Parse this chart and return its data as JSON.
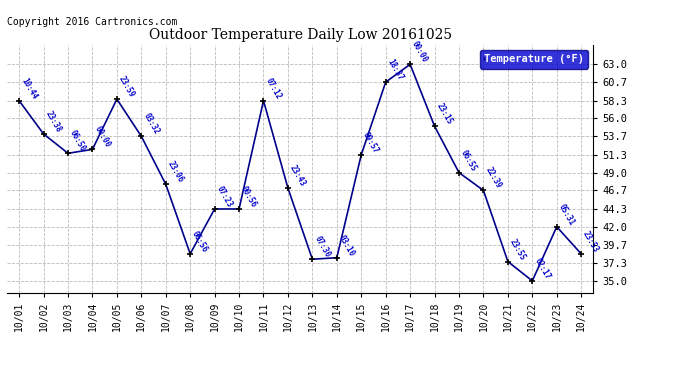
{
  "title": "Outdoor Temperature Daily Low 20161025",
  "copyright": "Copyright 2016 Cartronics.com",
  "legend_label": "Temperature (°F)",
  "background_color": "#ffffff",
  "line_color": "#00008B",
  "marker_color": "#000000",
  "label_color": "#0000CD",
  "x_dates": [
    "10/01",
    "10/02",
    "10/03",
    "10/04",
    "10/05",
    "10/06",
    "10/07",
    "10/08",
    "10/09",
    "10/10",
    "10/11",
    "10/12",
    "10/13",
    "10/14",
    "10/15",
    "10/16",
    "10/17",
    "10/18",
    "10/19",
    "10/20",
    "10/21",
    "10/22",
    "10/23",
    "10/24"
  ],
  "x_indices": [
    0,
    1,
    2,
    3,
    4,
    5,
    6,
    7,
    8,
    9,
    10,
    11,
    12,
    13,
    14,
    15,
    16,
    17,
    18,
    19,
    20,
    21,
    22,
    23
  ],
  "y_values": [
    58.3,
    54.0,
    51.5,
    52.0,
    58.5,
    53.7,
    47.5,
    38.5,
    44.3,
    44.3,
    58.3,
    47.0,
    37.8,
    38.0,
    51.3,
    60.7,
    63.0,
    55.0,
    49.0,
    46.7,
    37.5,
    35.0,
    42.0,
    38.5
  ],
  "time_labels": [
    "10:44",
    "23:38",
    "06:50",
    "00:00",
    "23:59",
    "03:32",
    "23:06",
    "06:56",
    "07:23",
    "00:56",
    "07:12",
    "23:43",
    "07:30",
    "03:10",
    "09:57",
    "18:37",
    "00:00",
    "23:15",
    "06:55",
    "22:39",
    "23:55",
    "02:17",
    "05:31",
    "23:53"
  ],
  "yticks": [
    35.0,
    37.3,
    39.7,
    42.0,
    44.3,
    46.7,
    49.0,
    51.3,
    53.7,
    56.0,
    58.3,
    60.7,
    63.0
  ],
  "ylim": [
    33.5,
    65.5
  ],
  "xlim": [
    -0.5,
    23.5
  ]
}
